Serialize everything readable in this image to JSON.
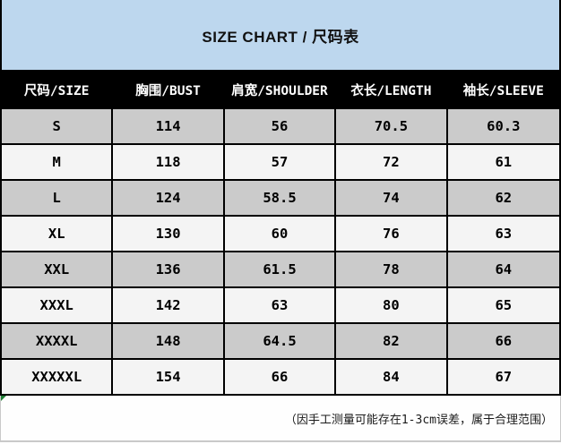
{
  "chart_data": {
    "type": "table",
    "title": "SIZE CHART / 尺码表",
    "columns": [
      "尺码/SIZE",
      "胸围/BUST",
      "肩宽/SHOULDER",
      "衣长/LENGTH",
      "袖长/SLEEVE"
    ],
    "rows": [
      [
        "S",
        "114",
        "56",
        "70.5",
        "60.3"
      ],
      [
        "M",
        "118",
        "57",
        "72",
        "61"
      ],
      [
        "L",
        "124",
        "58.5",
        "74",
        "62"
      ],
      [
        "XL",
        "130",
        "60",
        "76",
        "63"
      ],
      [
        "XXL",
        "136",
        "61.5",
        "78",
        "64"
      ],
      [
        "XXXL",
        "142",
        "63",
        "80",
        "65"
      ],
      [
        "XXXXL",
        "148",
        "64.5",
        "82",
        "66"
      ],
      [
        "XXXXXL",
        "154",
        "66",
        "84",
        "67"
      ]
    ],
    "footnote": "（因手工测量可能存在1-3cm误差，属于合理范围）",
    "layout": {
      "row_striping": "gray/light alternating starting gray",
      "header_style": "black background, white bold text",
      "title_band": "light blue"
    }
  },
  "colors": {
    "title_band_bg": "#BDD7EE",
    "head_bg": "#000000",
    "row_gray": "#CBCBCB",
    "row_light": "#F4F4F4",
    "marker_green": "#1E7E34"
  }
}
